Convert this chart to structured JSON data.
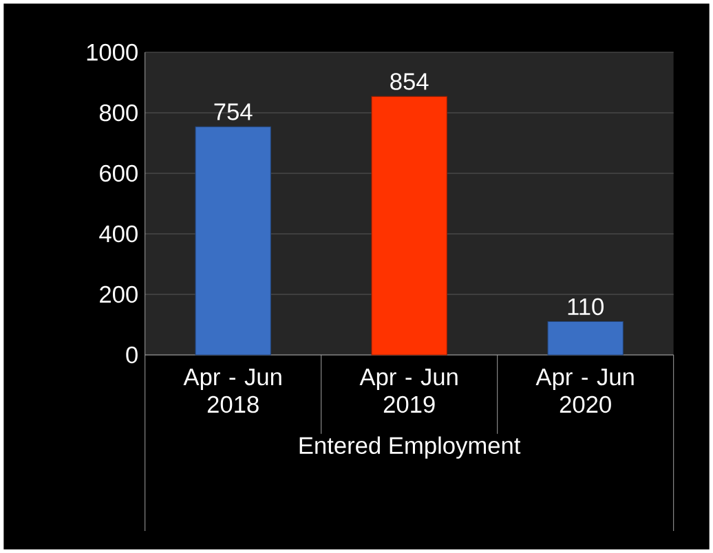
{
  "chart_data": {
    "type": "bar",
    "xlabel": "Entered Employment",
    "categories": [
      "Apr - Jun 2018",
      "Apr - Jun 2019",
      "Apr - Jun 2020"
    ],
    "values": [
      754,
      854,
      110
    ],
    "colors": [
      "#3a6fc4",
      "#ff3300",
      "#3a6fc4"
    ],
    "ylim": [
      0,
      1000
    ],
    "yticks": [
      0,
      200,
      400,
      600,
      800,
      1000
    ],
    "grid": "y",
    "data_labels": true
  }
}
